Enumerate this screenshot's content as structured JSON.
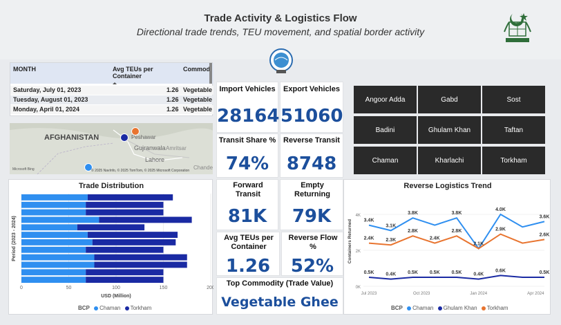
{
  "header": {
    "title": "Trade Activity & Logistics Flow",
    "subtitle": "Directional trade trends, TEU movement, and spatial border activity"
  },
  "table": {
    "columns": [
      "MONTH",
      "Avg TEUs per Container",
      "Commodi"
    ],
    "rows": [
      {
        "month": "Saturday, July 01, 2023",
        "teu": "1.26",
        "commodity": "Vegetable"
      },
      {
        "month": "Tuesday, August 01, 2023",
        "teu": "1.26",
        "commodity": "Vegetable"
      },
      {
        "month": "Monday, April 01, 2024",
        "teu": "1.26",
        "commodity": "Vegetable"
      }
    ]
  },
  "map": {
    "country_label": "AFGHANISTAN",
    "places": [
      "Peshawar",
      "Gujranwala",
      "Amritsar",
      "Lahore",
      "Chande"
    ],
    "attribution": "© 2025 NavInfo, © 2025 TomTom, © 2025 Microsoft Corporation",
    "bing": "Microsoft Bing"
  },
  "kpis": {
    "import_vehicles": {
      "label": "Import Vehicles",
      "value": "28164"
    },
    "export_vehicles": {
      "label": "Export Vehicles",
      "value": "51060"
    },
    "transit_share": {
      "label": "Transit Share %",
      "value": "74%"
    },
    "reverse_transit": {
      "label": "Reverse Transit",
      "value": "8748"
    },
    "forward_transit": {
      "label": "Forward Transit",
      "value": "81K"
    },
    "empty_returning": {
      "label": "Empty Returning",
      "value": "79K"
    },
    "avg_teus": {
      "label": "Avg TEUs per Container",
      "value": "1.26"
    },
    "reverse_flow": {
      "label": "Reverse Flow %",
      "value": "52%"
    },
    "top_commodity": {
      "label": "Top Commodity (Trade Value)",
      "value": "Vegetable Ghee"
    }
  },
  "bcp_buttons": [
    "Angoor Adda",
    "Gabd",
    "Sost",
    "Badini",
    "Ghulam Khan",
    "Taftan",
    "Chaman",
    "Kharlachi",
    "Torkham"
  ],
  "colors": {
    "chaman": "#2f8ff0",
    "torkham": "#1a2aa3",
    "ghulam_khan": "#1a2aa3",
    "torkham_line": "#e8742f",
    "kpi_value": "#1c4f9c"
  },
  "chart_data": [
    {
      "type": "bar",
      "title": "Trade Distribution",
      "xlabel": "USD (Million)",
      "ylabel": "Period (2023 - 2024)",
      "xlim": [
        0,
        200
      ],
      "xticks": [
        "0",
        "50",
        "100",
        "150",
        "200"
      ],
      "legend_title": "BCP",
      "series": [
        {
          "name": "Chaman",
          "values": [
            70,
            68,
            68,
            82,
            59,
            70,
            75,
            68,
            77,
            77,
            68,
            68
          ]
        },
        {
          "name": "Torkham",
          "values": [
            90,
            82,
            82,
            98,
            71,
            95,
            88,
            82,
            98,
            98,
            82,
            82
          ]
        }
      ],
      "stacked": true
    },
    {
      "type": "line",
      "title": "Reverse Logistics Trend",
      "ylabel": "Containers Returned",
      "yticks": [
        "0K",
        "2K",
        "4K"
      ],
      "xticks": [
        "Jul 2023",
        "Oct 2023",
        "Jan 2024",
        "Apr 2024"
      ],
      "legend_title": "BCP",
      "series": [
        {
          "name": "Chaman",
          "values": [
            3.4,
            3.1,
            3.8,
            3.4,
            3.8,
            2.1,
            4.0,
            3.3,
            3.6
          ],
          "labels": [
            "3.4K",
            "3.1K",
            "3.8K",
            "",
            "3.8K",
            "",
            "4.0K",
            "",
            "3.6K"
          ]
        },
        {
          "name": "Ghulam Khan",
          "values": [
            0.5,
            0.4,
            0.5,
            0.5,
            0.5,
            0.4,
            0.6,
            0.5,
            0.5
          ],
          "labels": [
            "0.5K",
            "0.4K",
            "0.5K",
            "0.5K",
            "0.5K",
            "0.4K",
            "0.6K",
            "",
            "0.5K"
          ]
        },
        {
          "name": "Torkham",
          "values": [
            2.4,
            2.3,
            2.8,
            2.4,
            2.8,
            2.1,
            2.9,
            2.4,
            2.6
          ],
          "labels": [
            "2.4K",
            "2.3K",
            "2.8K",
            "2.4K",
            "2.8K",
            "2.1K",
            "2.9K",
            "",
            "2.6K"
          ]
        }
      ],
      "extra_labels": [
        "2.9K",
        "0.5K",
        "3.4K"
      ]
    }
  ]
}
